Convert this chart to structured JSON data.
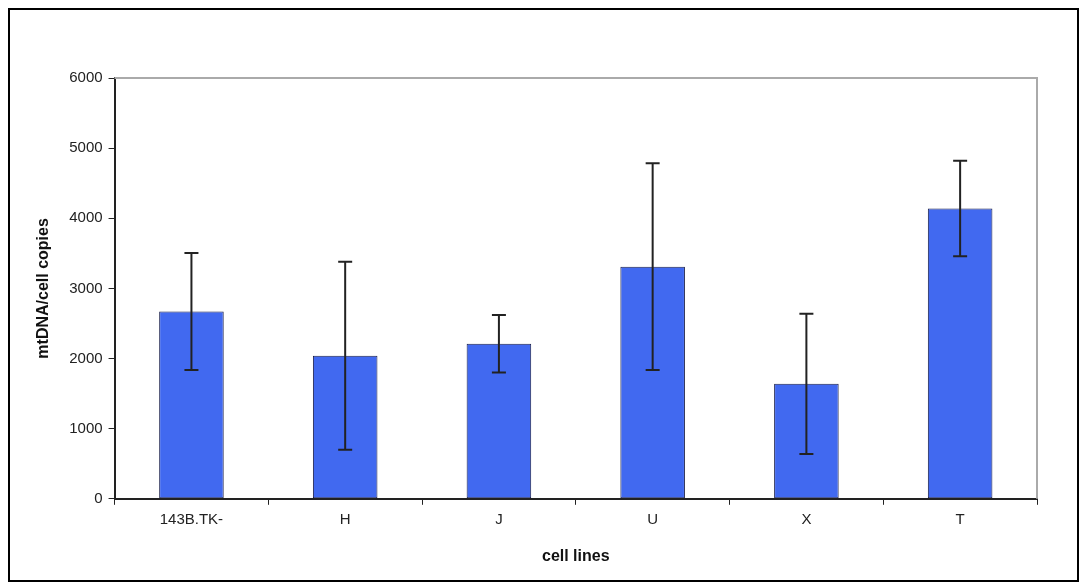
{
  "chart_data": {
    "type": "bar",
    "xlabel": "cell lines",
    "ylabel": "mtDNA/cell copies",
    "categories": [
      "143B.TK-",
      "H",
      "J",
      "U",
      "X",
      "T"
    ],
    "values": [
      2670,
      2040,
      2210,
      3310,
      1640,
      4140
    ],
    "errors": [
      835,
      1340,
      410,
      1475,
      1000,
      680
    ],
    "color": "#4169f0",
    "ylim": [
      0,
      6000
    ],
    "yticks": [
      0,
      1000,
      2000,
      3000,
      4000,
      5000,
      6000
    ]
  }
}
